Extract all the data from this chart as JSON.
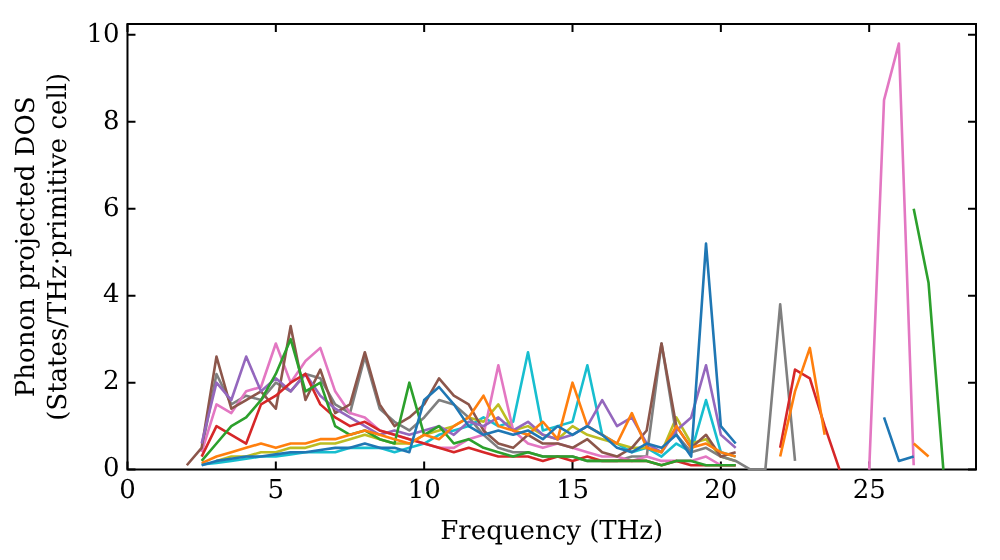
{
  "chart_data": {
    "type": "line",
    "xlabel": "Frequency (THz)",
    "ylabel": "Phonon projected DOS\n(States/THz·primitive cell)",
    "xlim": [
      0,
      28.6
    ],
    "xticks": [
      0,
      5,
      10,
      15,
      20,
      25
    ],
    "ylim": [
      0,
      10.25
    ],
    "yticks": [
      0,
      2,
      4,
      6,
      8,
      10
    ],
    "grid": false,
    "legend": false,
    "marker": "none",
    "line_style": "solid",
    "x": [
      2,
      2.5,
      3,
      3.5,
      4,
      4.5,
      5,
      5.5,
      6,
      6.5,
      7,
      7.5,
      8,
      8.5,
      9,
      9.5,
      10,
      10.5,
      11,
      11.5,
      12,
      12.5,
      13,
      13.5,
      14,
      14.5,
      15,
      15.5,
      16,
      16.5,
      17,
      17.5,
      18,
      18.5,
      19,
      19.5,
      20,
      20.5,
      21,
      21.5,
      22,
      22.5,
      23,
      23.5,
      24,
      25,
      25.5,
      26,
      26.5,
      27,
      27.5
    ],
    "series": [
      {
        "color": "#1f77b4",
        "values": [
          null,
          0.1,
          0.2,
          0.25,
          0.3,
          0.3,
          0.35,
          0.4,
          0.4,
          0.45,
          0.5,
          0.5,
          0.6,
          0.5,
          0.5,
          0.4,
          1.6,
          1.9,
          1.5,
          1.0,
          0.8,
          0.9,
          0.8,
          0.9,
          0.7,
          1.0,
          0.8,
          1.0,
          0.8,
          0.5,
          0.4,
          0.6,
          0.5,
          0.8,
          0.3,
          5.2,
          1.0,
          0.6,
          null,
          null,
          null,
          null,
          null,
          null,
          null,
          null,
          1.2,
          0.2,
          0.3,
          null,
          null
        ]
      },
      {
        "color": "#ff7f0e",
        "values": [
          null,
          0.15,
          0.3,
          0.4,
          0.5,
          0.6,
          0.5,
          0.6,
          0.6,
          0.7,
          0.7,
          0.8,
          0.9,
          0.8,
          0.7,
          0.6,
          0.8,
          0.7,
          1.0,
          1.2,
          1.7,
          1.0,
          0.9,
          0.8,
          1.1,
          0.7,
          2.0,
          1.0,
          0.8,
          0.6,
          1.3,
          0.5,
          0.4,
          1.0,
          0.5,
          0.6,
          0.4,
          0.3,
          null,
          null,
          0.3,
          1.8,
          2.8,
          0.8,
          null,
          null,
          null,
          null,
          0.6,
          0.3,
          null
        ]
      },
      {
        "color": "#2ca02c",
        "values": [
          null,
          0.2,
          0.6,
          1.0,
          1.2,
          1.6,
          2.2,
          3.0,
          1.8,
          2.0,
          1.0,
          0.8,
          0.9,
          0.7,
          0.6,
          2.0,
          0.8,
          1.0,
          0.6,
          0.7,
          0.5,
          0.4,
          0.3,
          0.4,
          0.3,
          0.3,
          0.3,
          0.2,
          0.2,
          0.2,
          0.2,
          0.2,
          0.1,
          0.2,
          0.2,
          0.1,
          0.1,
          0.1,
          null,
          null,
          null,
          null,
          null,
          null,
          null,
          null,
          null,
          null,
          6.0,
          4.3,
          0
        ]
      },
      {
        "color": "#d62728",
        "values": [
          null,
          0.3,
          1.0,
          0.8,
          0.6,
          1.5,
          1.7,
          2.0,
          2.2,
          1.5,
          1.2,
          1.0,
          1.1,
          0.9,
          0.8,
          0.7,
          0.6,
          0.5,
          0.4,
          0.5,
          0.4,
          0.3,
          0.3,
          0.3,
          0.2,
          0.3,
          0.2,
          0.3,
          0.2,
          0.2,
          0.2,
          0.2,
          0.1,
          0.2,
          0.1,
          0.1,
          0.1,
          0.1,
          null,
          null,
          0.5,
          2.3,
          2.1,
          1.0,
          0,
          null,
          null,
          null,
          null,
          null,
          null
        ]
      },
      {
        "color": "#9467bd",
        "values": [
          null,
          0.6,
          2.0,
          1.6,
          2.6,
          1.8,
          2.1,
          1.8,
          2.2,
          1.7,
          1.4,
          1.2,
          1.0,
          0.8,
          0.9,
          0.8,
          0.9,
          1.0,
          0.8,
          1.1,
          1.0,
          1.2,
          0.9,
          1.1,
          0.8,
          0.7,
          0.8,
          1.0,
          1.6,
          1.0,
          1.2,
          0.6,
          0.4,
          0.9,
          1.2,
          2.4,
          0.8,
          0.5,
          null,
          null,
          null,
          null,
          null,
          null,
          null,
          null,
          null,
          null,
          null,
          null,
          null
        ]
      },
      {
        "color": "#8c564b",
        "values": [
          0.1,
          0.5,
          2.6,
          1.4,
          1.6,
          1.8,
          1.4,
          3.3,
          1.6,
          2.3,
          1.3,
          1.5,
          2.7,
          1.5,
          1.0,
          1.2,
          1.5,
          2.1,
          1.7,
          1.5,
          0.9,
          0.6,
          0.5,
          0.8,
          0.6,
          0.6,
          0.5,
          0.7,
          0.4,
          0.3,
          0.5,
          0.9,
          2.9,
          1.0,
          0.5,
          0.8,
          0.3,
          0.4,
          null,
          null,
          null,
          null,
          null,
          null,
          null,
          null,
          null,
          null,
          null,
          null,
          null
        ]
      },
      {
        "color": "#e377c2",
        "values": [
          null,
          0.4,
          1.5,
          1.3,
          1.8,
          1.9,
          2.9,
          2.0,
          2.5,
          2.8,
          1.8,
          1.3,
          1.2,
          0.9,
          0.8,
          0.7,
          0.6,
          0.5,
          0.5,
          0.7,
          0.8,
          2.4,
          0.9,
          0.6,
          0.5,
          0.6,
          0.5,
          0.4,
          0.3,
          0.3,
          0.2,
          0.3,
          0.2,
          0.2,
          0.2,
          0.3,
          0.1,
          0.1,
          null,
          null,
          null,
          null,
          null,
          null,
          null,
          0,
          8.5,
          9.8,
          0.1,
          null,
          null
        ]
      },
      {
        "color": "#7f7f7f",
        "values": [
          null,
          0.45,
          2.2,
          1.5,
          1.7,
          1.6,
          2.0,
          1.8,
          2.2,
          2.1,
          1.5,
          1.3,
          2.6,
          1.4,
          1.1,
          0.9,
          1.2,
          1.6,
          1.5,
          1.2,
          0.8,
          0.5,
          0.4,
          0.4,
          0.3,
          0.3,
          0.3,
          0.2,
          0.2,
          0.2,
          0.3,
          0.3,
          2.9,
          0.8,
          0.4,
          0.5,
          0.3,
          0.2,
          0,
          0,
          3.8,
          0.2,
          null,
          null,
          null,
          null,
          null,
          null,
          null,
          null,
          null
        ]
      },
      {
        "color": "#bcbd22",
        "values": [
          null,
          null,
          0.2,
          0.3,
          0.3,
          0.4,
          0.4,
          0.5,
          0.5,
          0.6,
          0.6,
          0.7,
          0.8,
          0.7,
          0.6,
          0.6,
          0.8,
          0.9,
          1.0,
          1.2,
          1.1,
          1.5,
          0.9,
          1.0,
          0.8,
          0.7,
          1.0,
          0.8,
          0.7,
          0.6,
          0.5,
          0.5,
          0.4,
          1.2,
          0.6,
          0.7,
          0.3,
          0.2,
          null,
          null,
          null,
          null,
          null,
          null,
          null,
          null,
          null,
          null,
          null,
          null,
          null
        ]
      },
      {
        "color": "#17becf",
        "values": [
          null,
          0.12,
          0.15,
          0.2,
          0.25,
          0.3,
          0.3,
          0.35,
          0.4,
          0.4,
          0.4,
          0.5,
          0.5,
          0.5,
          0.4,
          0.5,
          0.6,
          0.8,
          0.9,
          1.0,
          1.2,
          1.0,
          1.1,
          2.7,
          0.9,
          1.0,
          1.1,
          2.4,
          0.8,
          0.6,
          0.4,
          0.5,
          0.3,
          0.6,
          0.4,
          1.6,
          0.4,
          0.3,
          null,
          null,
          null,
          null,
          null,
          null,
          null,
          null,
          null,
          null,
          null,
          null,
          null
        ]
      }
    ]
  }
}
